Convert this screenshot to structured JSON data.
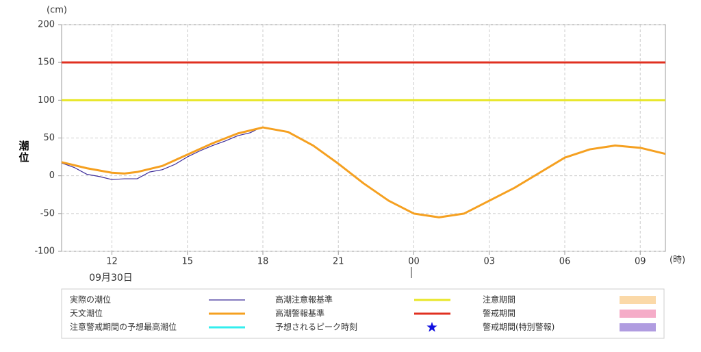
{
  "chart_data": {
    "type": "line",
    "y_label": "潮位",
    "y_unit": "(cm)",
    "x_unit": "(時)",
    "date_label": "09月30日",
    "xlim": [
      10,
      34
    ],
    "ylim": [
      -100,
      200
    ],
    "yticks": [
      -100,
      -50,
      0,
      50,
      100,
      150,
      200
    ],
    "xticks": [
      12,
      15,
      18,
      21,
      {
        "value": 24,
        "label": "00"
      },
      {
        "value": 27,
        "label": "03"
      },
      {
        "value": 30,
        "label": "06"
      },
      {
        "value": 33,
        "label": "09"
      }
    ],
    "grid": true,
    "series": [
      {
        "name": "実際の潮位",
        "color": "#3b2a99",
        "width": 1.2,
        "x": [
          10,
          10.5,
          11,
          11.5,
          12,
          12.5,
          13,
          13.5,
          14,
          14.5,
          15,
          15.5,
          16,
          16.5,
          17,
          17.5,
          17.8
        ],
        "values": [
          17,
          11,
          2,
          -1,
          -5,
          -4,
          -4,
          5,
          8,
          15,
          25,
          33,
          40,
          46,
          53,
          57,
          62
        ]
      },
      {
        "name": "天文潮位",
        "color": "#f5a020",
        "width": 3,
        "x": [
          10,
          11,
          12,
          12.5,
          13,
          14,
          15,
          16,
          17,
          18,
          19,
          20,
          21,
          22,
          23,
          24,
          25,
          26,
          27,
          28,
          29,
          30,
          31,
          32,
          33,
          34
        ],
        "values": [
          18,
          10,
          4,
          3,
          5,
          13,
          28,
          43,
          56,
          64,
          58,
          40,
          16,
          -10,
          -33,
          -50,
          -55,
          -50,
          -33,
          -16,
          4,
          24,
          35,
          40,
          37,
          29
        ]
      }
    ],
    "thresholds": [
      {
        "name": "高潮注意報基準",
        "color": "#e8e626",
        "value": 100
      },
      {
        "name": "高潮警報基準",
        "color": "#e03020",
        "value": 150
      }
    ],
    "legend_extras": [
      {
        "name": "注意警戒期間の予想最高潮位",
        "color": "#33eeee",
        "kind": "line"
      },
      {
        "name": "予想されるピーク時刻",
        "color": "#1010e0",
        "kind": "star"
      },
      {
        "name": "注意期間",
        "color": "#fbd9a8",
        "kind": "box"
      },
      {
        "name": "警戒期間",
        "color": "#f5acc8",
        "kind": "box"
      },
      {
        "name": "警戒期間(特別警報)",
        "color": "#b09ce0",
        "kind": "box"
      }
    ]
  }
}
